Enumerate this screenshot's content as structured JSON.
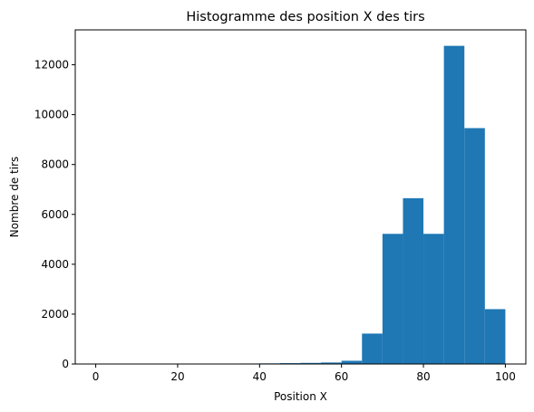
{
  "chart_data": {
    "type": "bar",
    "title": "Histogramme des position X des tirs",
    "xlabel": "Position X",
    "ylabel": "Nombre de tirs",
    "bin_edges": [
      0,
      5,
      10,
      15,
      20,
      25,
      30,
      35,
      40,
      45,
      50,
      55,
      60,
      65,
      70,
      75,
      80,
      85,
      90,
      95,
      100
    ],
    "values": [
      3,
      1,
      1,
      1,
      2,
      3,
      6,
      20,
      25,
      35,
      45,
      60,
      130,
      1220,
      5220,
      6650,
      5220,
      12760,
      9460,
      2200
    ],
    "xlim": [
      -5,
      105
    ],
    "ylim": [
      0,
      13400
    ],
    "xticks": [
      0,
      20,
      40,
      60,
      80,
      100
    ],
    "yticks": [
      0,
      2000,
      4000,
      6000,
      8000,
      10000,
      12000
    ],
    "xtick_labels": [
      "0",
      "20",
      "40",
      "60",
      "80",
      "100"
    ],
    "ytick_labels": [
      "0",
      "2000",
      "4000",
      "6000",
      "8000",
      "10000",
      "12000"
    ],
    "bar_color": "#1f77b4",
    "grid": false,
    "legend": "none"
  }
}
